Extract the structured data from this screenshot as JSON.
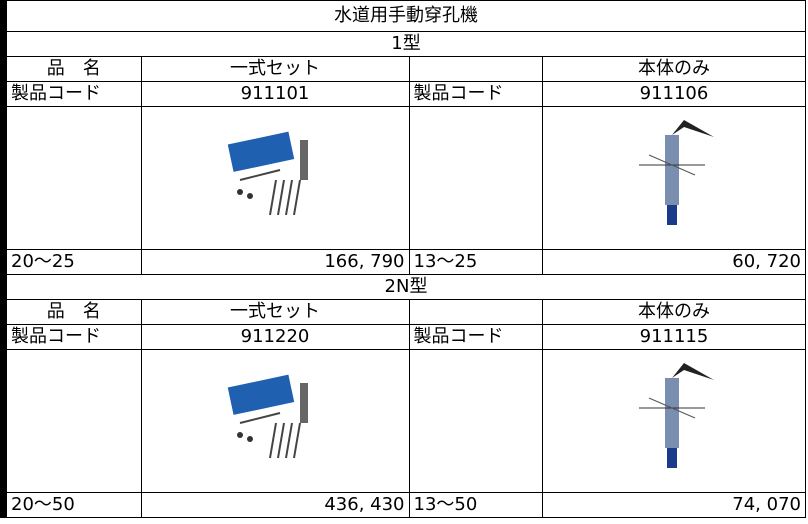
{
  "title": "水道用手動穿孔機",
  "sections": [
    {
      "model": "1型",
      "name_label": "品　名",
      "set_name": "一式セット",
      "body_name": "本体のみ",
      "code_label": "製品コード",
      "set_code": "911101",
      "body_code": "911106",
      "set_size": "20～25",
      "set_price": "166, 790",
      "body_size": "13～25",
      "body_price": "60, 720"
    },
    {
      "model": "2N型",
      "name_label": "品　名",
      "set_name": "一式セット",
      "body_name": "本体のみ",
      "code_label": "製品コード",
      "set_code": "911220",
      "body_code": "911115",
      "set_size": "20～50",
      "set_price": "436, 430",
      "body_size": "13～50",
      "body_price": "74, 070"
    }
  ]
}
